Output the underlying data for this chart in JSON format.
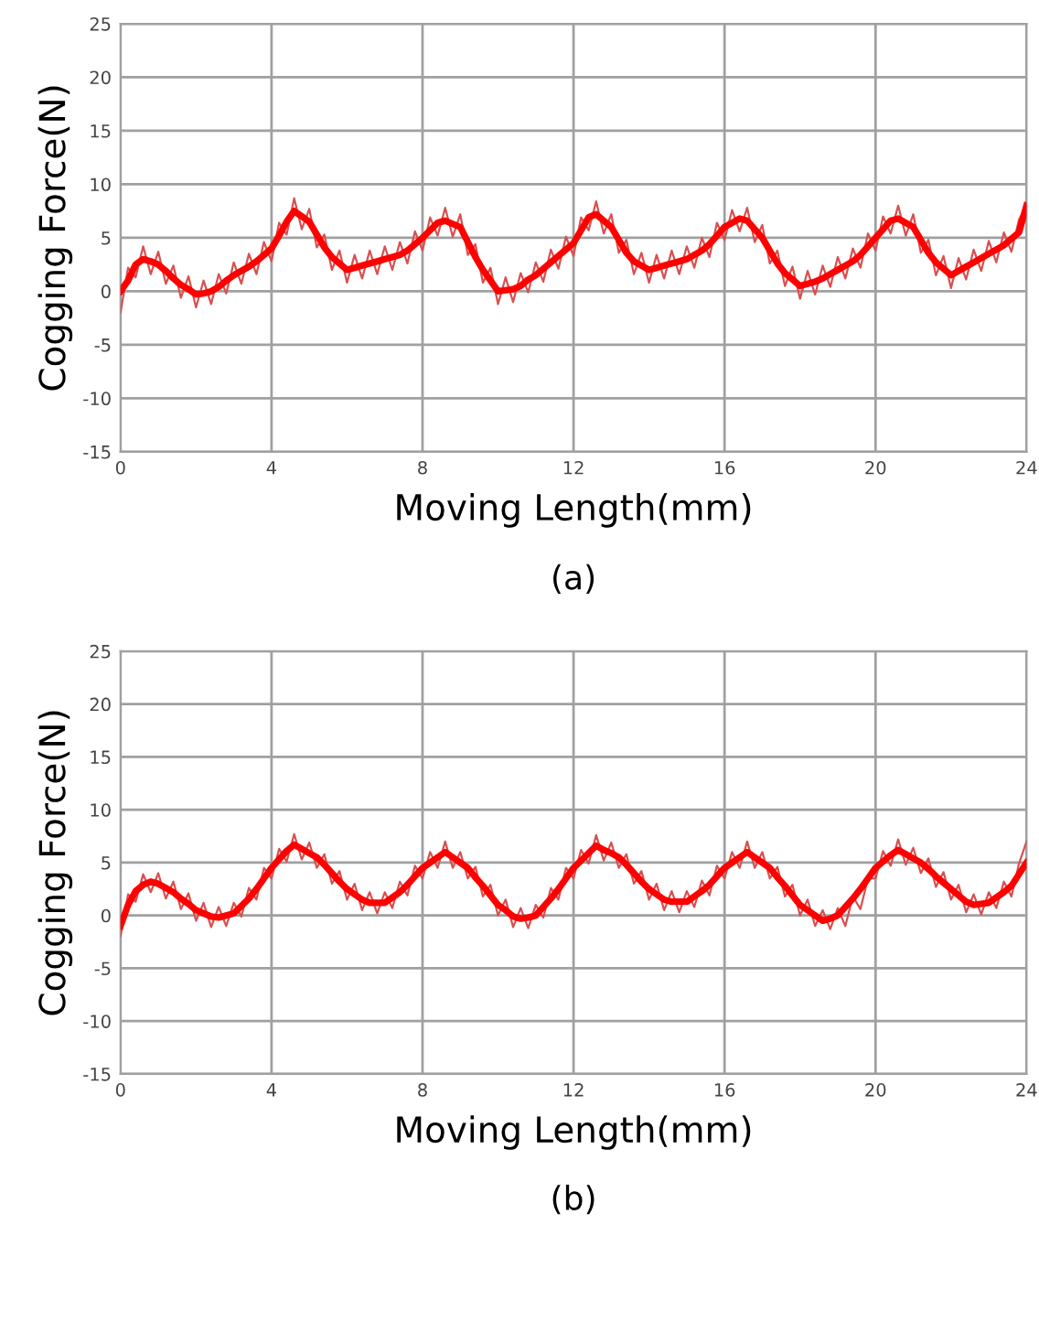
{
  "chart_data": [
    {
      "type": "line",
      "xlabel": "Moving Length(mm)",
      "ylabel": "Cogging Force(N)",
      "annotations": [
        "(a)"
      ],
      "xlim": [
        0,
        24
      ],
      "ylim": [
        -15,
        25
      ],
      "xticks": [
        0,
        4,
        8,
        12,
        16,
        20,
        24
      ],
      "yticks": [
        -15,
        -10,
        -5,
        0,
        5,
        10,
        15,
        20,
        25
      ],
      "grid": true,
      "legend": false,
      "marker": "none",
      "line_style": "solid",
      "x": [
        0,
        0.2,
        0.4,
        0.6,
        0.8,
        1.0,
        1.2,
        1.4,
        1.6,
        1.8,
        2.0,
        2.2,
        2.4,
        2.6,
        2.8,
        3.0,
        3.2,
        3.4,
        3.6,
        3.8,
        4.0,
        4.2,
        4.4,
        4.6,
        4.8,
        5.0,
        5.2,
        5.4,
        5.6,
        5.8,
        6.0,
        6.2,
        6.4,
        6.6,
        6.8,
        7.0,
        7.2,
        7.4,
        7.6,
        7.8,
        8.0,
        8.2,
        8.4,
        8.6,
        8.8,
        9.0,
        9.2,
        9.4,
        9.6,
        9.8,
        10.0,
        10.2,
        10.4,
        10.6,
        10.8,
        11.0,
        11.2,
        11.4,
        11.6,
        11.8,
        12.0,
        12.2,
        12.4,
        12.6,
        12.8,
        13.0,
        13.2,
        13.4,
        13.6,
        13.8,
        14.0,
        14.2,
        14.4,
        14.6,
        14.8,
        15.0,
        15.2,
        15.4,
        15.6,
        15.8,
        16.0,
        16.2,
        16.4,
        16.6,
        16.8,
        17.0,
        17.2,
        17.4,
        17.6,
        17.8,
        18.0,
        18.2,
        18.4,
        18.6,
        18.8,
        19.0,
        19.2,
        19.4,
        19.6,
        19.8,
        20.0,
        20.2,
        20.4,
        20.6,
        20.8,
        21.0,
        21.2,
        21.4,
        21.6,
        21.8,
        22.0,
        22.2,
        22.4,
        22.6,
        22.8,
        23.0,
        23.2,
        23.4,
        23.6,
        23.8,
        24.0
      ],
      "series": [
        {
          "color": "#d85050",
          "values": [
            -2,
            2.2,
            1.3,
            4.2,
            1.6,
            3.7,
            0.7,
            2.4,
            -0.6,
            1.4,
            -1.5,
            1.0,
            -1.2,
            1.6,
            -0.2,
            2.7,
            0.7,
            3.5,
            1.6,
            4.6,
            2.8,
            6.4,
            5.3,
            8.7,
            5.8,
            7.7,
            4.1,
            5.3,
            2.0,
            3.8,
            0.8,
            3.4,
            1.2,
            3.8,
            1.6,
            4.2,
            2.0,
            4.6,
            2.6,
            5.6,
            3.8,
            6.9,
            5.2,
            7.8,
            5.1,
            7.2,
            3.4,
            4.4,
            0.8,
            2.2,
            -1.2,
            1.3,
            -1.0,
            1.7,
            -0.1,
            2.7,
            0.9,
            3.9,
            2.1,
            5.1,
            3.3,
            6.9,
            5.7,
            8.4,
            5.4,
            7.2,
            3.6,
            4.8,
            1.6,
            3.6,
            0.8,
            3.4,
            1.2,
            3.8,
            1.6,
            4.2,
            2.2,
            5.0,
            3.2,
            6.4,
            4.8,
            7.6,
            5.6,
            7.8,
            4.6,
            6.2,
            2.6,
            3.8,
            0.5,
            2.3,
            -0.7,
            1.9,
            -0.3,
            2.4,
            0.4,
            3.2,
            1.2,
            4.0,
            2.2,
            5.4,
            3.8,
            7.0,
            5.4,
            8.0,
            5.2,
            7.2,
            3.6,
            4.8,
            1.5,
            3.3,
            0.3,
            3.1,
            1.1,
            3.9,
            1.9,
            4.7,
            2.7,
            5.5,
            3.7,
            6.7,
            8
          ]
        },
        {
          "color": "#ff0000",
          "values": [
            0,
            1,
            2.5,
            3,
            2.8,
            2.5,
            1.9,
            1.2,
            0.6,
            0.2,
            -0.3,
            -0.2,
            0,
            0.4,
            1,
            1.5,
            1.9,
            2.3,
            2.8,
            3.4,
            4,
            5.2,
            6.5,
            7.5,
            7,
            6.5,
            5.3,
            4.1,
            3.2,
            2.6,
            2,
            2.2,
            2.4,
            2.6,
            2.8,
            3,
            3.2,
            3.4,
            3.8,
            4.4,
            5,
            5.7,
            6.4,
            6.6,
            6.3,
            6,
            4.6,
            3.2,
            2,
            1,
            0,
            0.1,
            0.2,
            0.5,
            1.1,
            1.5,
            2.1,
            2.7,
            3.3,
            3.9,
            4.5,
            5.7,
            6.9,
            7.2,
            6.6,
            6,
            4.8,
            3.6,
            2.8,
            2.4,
            2,
            2.2,
            2.4,
            2.6,
            2.8,
            3,
            3.4,
            3.8,
            4.4,
            5.2,
            6,
            6.4,
            6.8,
            6.6,
            5.8,
            5,
            3.8,
            2.6,
            1.7,
            1.1,
            0.5,
            0.7,
            0.9,
            1.2,
            1.6,
            2,
            2.4,
            2.8,
            3.4,
            4.2,
            5,
            5.8,
            6.6,
            6.8,
            6.4,
            6,
            4.8,
            3.6,
            2.7,
            2.1,
            1.5,
            1.9,
            2.3,
            2.7,
            3.1,
            3.5,
            3.9,
            4.3,
            4.9,
            5.5,
            8
          ]
        }
      ]
    },
    {
      "type": "line",
      "xlabel": "Moving Length(mm)",
      "ylabel": "Cogging Force(N)",
      "annotations": [
        "(b)"
      ],
      "xlim": [
        0,
        24
      ],
      "ylim": [
        -15,
        25
      ],
      "xticks": [
        0,
        4,
        8,
        12,
        16,
        20,
        24
      ],
      "yticks": [
        -15,
        -10,
        -5,
        0,
        5,
        10,
        15,
        20,
        25
      ],
      "grid": true,
      "legend": false,
      "marker": "none",
      "line_style": "solid",
      "x": [
        0,
        0.2,
        0.4,
        0.6,
        0.8,
        1.0,
        1.2,
        1.4,
        1.6,
        1.8,
        2.0,
        2.2,
        2.4,
        2.6,
        2.8,
        3.0,
        3.2,
        3.4,
        3.6,
        3.8,
        4.0,
        4.2,
        4.4,
        4.6,
        4.8,
        5.0,
        5.2,
        5.4,
        5.6,
        5.8,
        6.0,
        6.2,
        6.4,
        6.6,
        6.8,
        7.0,
        7.2,
        7.4,
        7.6,
        7.8,
        8.0,
        8.2,
        8.4,
        8.6,
        8.8,
        9.0,
        9.2,
        9.4,
        9.6,
        9.8,
        10.0,
        10.2,
        10.4,
        10.6,
        10.8,
        11.0,
        11.2,
        11.4,
        11.6,
        11.8,
        12.0,
        12.2,
        12.4,
        12.6,
        12.8,
        13.0,
        13.2,
        13.4,
        13.6,
        13.8,
        14.0,
        14.2,
        14.4,
        14.6,
        14.8,
        15.0,
        15.2,
        15.4,
        15.6,
        15.8,
        16.0,
        16.2,
        16.4,
        16.6,
        16.8,
        17.0,
        17.2,
        17.4,
        17.6,
        17.8,
        18.0,
        18.2,
        18.4,
        18.6,
        18.8,
        19.0,
        19.2,
        19.4,
        19.6,
        19.8,
        20.0,
        20.2,
        20.4,
        20.6,
        20.8,
        21.0,
        21.2,
        21.4,
        21.6,
        21.8,
        22.0,
        22.2,
        22.4,
        22.6,
        22.8,
        23.0,
        23.2,
        23.4,
        23.6,
        23.8,
        24.0
      ],
      "series": [
        {
          "color": "#d85050",
          "values": [
            -2,
            2.0,
            1.3,
            3.9,
            2.2,
            4.0,
            1.6,
            3.2,
            0.6,
            2.1,
            -0.5,
            1.2,
            -1.1,
            0.8,
            -1.0,
            1.2,
            -0.1,
            2.6,
            1.5,
            4.5,
            3.5,
            6.3,
            5.1,
            7.7,
            5.3,
            6.9,
            4.5,
            5.8,
            3.0,
            4.2,
            1.5,
            3.0,
            0.5,
            2.2,
            0.2,
            2.2,
            0.7,
            3.2,
            1.9,
            4.7,
            3.5,
            6.0,
            4.5,
            7.0,
            4.5,
            6.0,
            3.5,
            4.6,
            1.8,
            2.9,
            0.0,
            1.5,
            -1.1,
            0.7,
            -1.2,
            1.0,
            -0.2,
            2.6,
            1.5,
            4.5,
            3.5,
            6.2,
            4.9,
            7.6,
            5.2,
            6.9,
            4.5,
            5.8,
            3.0,
            4.2,
            1.5,
            3.0,
            0.5,
            2.3,
            0.3,
            2.3,
            0.8,
            3.3,
            1.9,
            4.7,
            3.5,
            6.0,
            4.5,
            7.0,
            4.5,
            6.0,
            3.5,
            4.6,
            1.8,
            2.9,
            0.0,
            1.5,
            -1.0,
            0.5,
            -1.3,
            0.7,
            -1.0,
            1.8,
            0.6,
            3.5,
            3.5,
            6.1,
            4.7,
            7.2,
            4.8,
            6.4,
            4.0,
            5.4,
            2.7,
            4.1,
            1.5,
            2.9,
            0.3,
            2.0,
            0.1,
            2.2,
            0.7,
            3.2,
            1.8,
            4.9,
            7.0
          ]
        },
        {
          "color": "#ff0000",
          "values": [
            -1,
            1,
            2.3,
            2.9,
            3.2,
            3,
            2.6,
            2.2,
            1.6,
            1.1,
            0.5,
            0.2,
            -0.1,
            -0.2,
            0,
            0.2,
            0.9,
            1.6,
            2.5,
            3.5,
            4.5,
            5.3,
            6.1,
            6.7,
            6.3,
            5.9,
            5.5,
            4.8,
            4,
            3.2,
            2.5,
            2,
            1.5,
            1.2,
            1.2,
            1.2,
            1.7,
            2.2,
            2.9,
            3.7,
            4.5,
            5,
            5.5,
            6,
            5.5,
            5,
            4.5,
            3.6,
            2.8,
            1.9,
            1,
            0.5,
            -0.1,
            -0.3,
            -0.2,
            0,
            0.8,
            1.6,
            2.5,
            3.5,
            4.5,
            5.2,
            5.9,
            6.6,
            6.2,
            5.9,
            5.5,
            4.8,
            4,
            3.2,
            2.5,
            2,
            1.5,
            1.3,
            1.3,
            1.3,
            1.8,
            2.3,
            2.9,
            3.7,
            4.5,
            5,
            5.5,
            6,
            5.5,
            5,
            4.5,
            3.6,
            2.8,
            1.9,
            1,
            0.5,
            0,
            -0.5,
            -0.3,
            0,
            0.8,
            1.6,
            2.5,
            3.5,
            4.5,
            5.1,
            5.7,
            6.2,
            5.8,
            5.4,
            5,
            4.4,
            3.7,
            3.1,
            2.5,
            1.9,
            1.3,
            1,
            1.1,
            1.2,
            1.7,
            2.2,
            2.8,
            3.9,
            5
          ]
        }
      ]
    }
  ]
}
